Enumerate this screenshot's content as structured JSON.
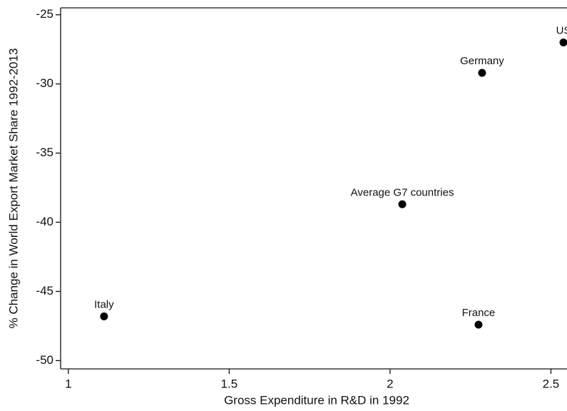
{
  "chart_data": {
    "type": "scatter",
    "x_label": "Gross Expenditure in R&D in 1992",
    "y_label": "% Change in World Export Market Share 1992-2013",
    "labels": [
      "US",
      "Germany",
      "Average G7 countries",
      "Italy",
      "France"
    ],
    "x": [
      2.539,
      2.286,
      2.038,
      1.111,
      2.275
    ],
    "values": [
      -27.0,
      -29.2,
      -38.7,
      -46.8,
      -47.4
    ],
    "color": "#000000",
    "xlim": [
      0.976,
      2.55
    ],
    "xticks": [
      1,
      1.5,
      2,
      2.5
    ],
    "ylim": [
      -50.6,
      -24.5
    ],
    "yticks": [
      -25,
      -30,
      -35,
      -40,
      -45,
      -50
    ],
    "grid": false
  }
}
